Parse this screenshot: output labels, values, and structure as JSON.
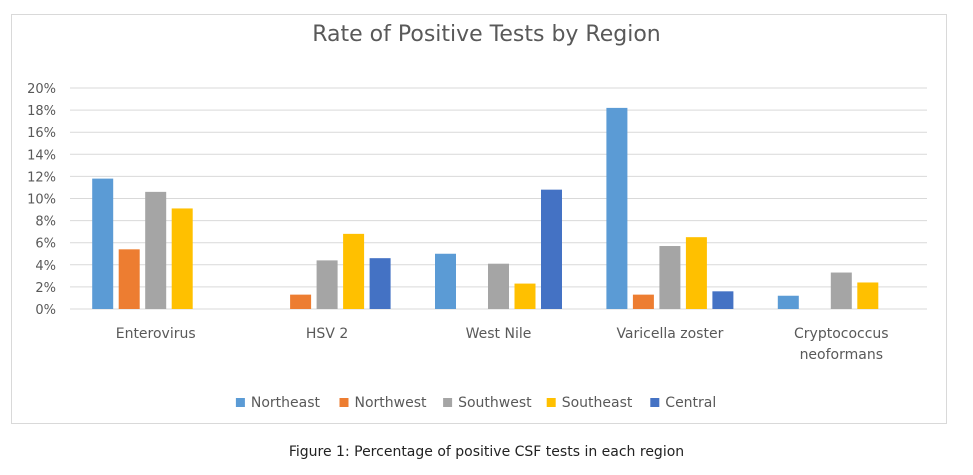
{
  "caption": "Figure 1: Percentage of positive CSF tests in each region",
  "chart_data": {
    "type": "bar",
    "title": "Rate of Positive Tests by Region",
    "xlabel": "",
    "ylabel": "",
    "ylim": [
      0,
      20
    ],
    "yticks": [
      "0%",
      "2%",
      "4%",
      "6%",
      "8%",
      "10%",
      "12%",
      "14%",
      "16%",
      "18%",
      "20%"
    ],
    "grid": true,
    "legend_position": "bottom",
    "categories": [
      [
        "Enterovirus"
      ],
      [
        "HSV 2"
      ],
      [
        "West Nile"
      ],
      [
        "Varicella zoster"
      ],
      [
        "Cryptococcus",
        "neoformans"
      ]
    ],
    "series": [
      {
        "name": "Northeast",
        "color": "#5b9bd5",
        "values": [
          11.8,
          null,
          5.0,
          18.2,
          1.2
        ]
      },
      {
        "name": "Northwest",
        "color": "#ed7d31",
        "values": [
          5.4,
          1.3,
          null,
          1.3,
          null
        ]
      },
      {
        "name": "Southwest",
        "color": "#a5a5a5",
        "values": [
          10.6,
          4.4,
          4.1,
          5.7,
          3.3
        ]
      },
      {
        "name": "Southeast",
        "color": "#ffc000",
        "values": [
          9.1,
          6.8,
          2.3,
          6.5,
          2.4
        ]
      },
      {
        "name": "Central",
        "color": "#4472c4",
        "values": [
          null,
          4.6,
          10.8,
          1.6,
          null
        ]
      }
    ]
  }
}
